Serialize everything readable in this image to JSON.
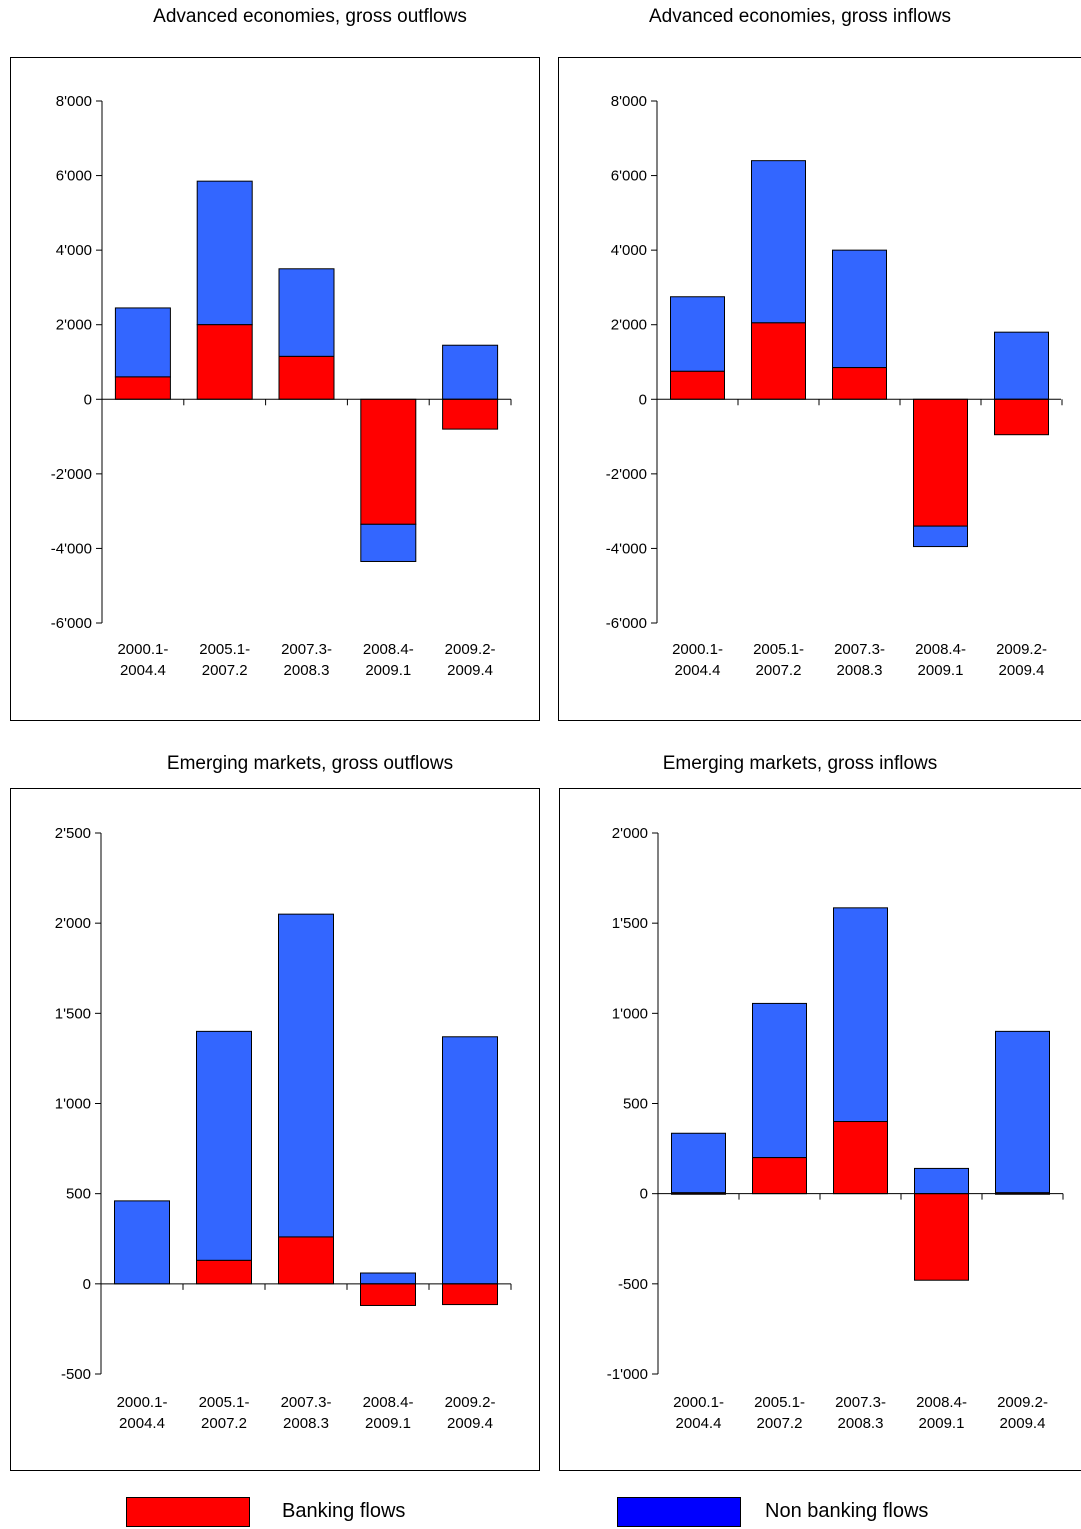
{
  "colors": {
    "banking": "#ff0000",
    "nonbanking": "#3366ff",
    "legend_nonbanking": "#0000ff"
  },
  "legend": {
    "banking": "Banking flows",
    "nonbanking": "Non banking flows"
  },
  "chart_data": [
    {
      "type": "bar",
      "title": "Advanced economies, gross outflows",
      "categories": [
        "2000.1-\n2004.4",
        "2005.1-\n2007.2",
        "2007.3-\n2008.3",
        "2008.4-\n2009.1",
        "2009.2-\n2009.4"
      ],
      "yticks": [
        "8'000",
        "6'000",
        "4'000",
        "2'000",
        "0",
        "-2'000",
        "-4'000",
        "-6'000"
      ],
      "ylim": [
        -6000,
        8000
      ],
      "series": [
        {
          "name": "Banking flows",
          "values": [
            600,
            2000,
            1150,
            -3350,
            -800
          ]
        },
        {
          "name": "Non banking flows",
          "values": [
            1850,
            3850,
            2350,
            -1000,
            1450
          ]
        }
      ]
    },
    {
      "type": "bar",
      "title": "Advanced economies, gross inflows",
      "categories": [
        "2000.1-\n2004.4",
        "2005.1-\n2007.2",
        "2007.3-\n2008.3",
        "2008.4-\n2009.1",
        "2009.2-\n2009.4"
      ],
      "yticks": [
        "8'000",
        "6'000",
        "4'000",
        "2'000",
        "0",
        "-2'000",
        "-4'000",
        "-6'000"
      ],
      "ylim": [
        -6000,
        8000
      ],
      "series": [
        {
          "name": "Banking flows",
          "values": [
            750,
            2050,
            850,
            -3400,
            -950
          ]
        },
        {
          "name": "Non banking flows",
          "values": [
            2000,
            4350,
            3150,
            -550,
            1800
          ]
        }
      ]
    },
    {
      "type": "bar",
      "title": "Emerging markets, gross outflows",
      "categories": [
        "2000.1-\n2004.4",
        "2005.1-\n2007.2",
        "2007.3-\n2008.3",
        "2008.4-\n2009.1",
        "2009.2-\n2009.4"
      ],
      "yticks": [
        "2'500",
        "2'000",
        "1'500",
        "1'000",
        "500",
        "0",
        "-500"
      ],
      "ylim": [
        -500,
        2500
      ],
      "series": [
        {
          "name": "Banking flows",
          "values": [
            0,
            130,
            260,
            -120,
            -115
          ]
        },
        {
          "name": "Non banking flows",
          "values": [
            460,
            1270,
            1790,
            60,
            1370
          ]
        }
      ]
    },
    {
      "type": "bar",
      "title": "Emerging markets, gross inflows",
      "categories": [
        "2000.1-\n2004.4",
        "2005.1-\n2007.2",
        "2007.3-\n2008.3",
        "2008.4-\n2009.1",
        "2009.2-\n2009.4"
      ],
      "yticks": [
        "2'000",
        "1'500",
        "1'000",
        "500",
        "0",
        "-500",
        "-1'000"
      ],
      "ylim": [
        -1000,
        2000
      ],
      "series": [
        {
          "name": "Banking flows",
          "values": [
            5,
            200,
            400,
            -480,
            5
          ]
        },
        {
          "name": "Non banking flows",
          "values": [
            330,
            855,
            1185,
            140,
            895
          ]
        }
      ]
    }
  ]
}
